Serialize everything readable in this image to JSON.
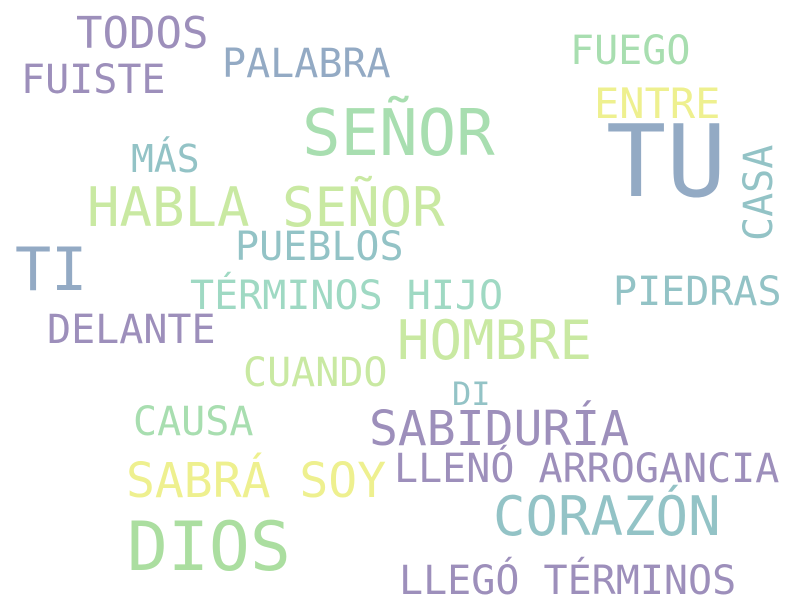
{
  "palette": {
    "purple": "#9d8fbb",
    "slate": "#93aac4",
    "mint": "#a8deb0",
    "yellow": "#eef08f",
    "teal": "#93c3c6",
    "lime": "#c9e9a2",
    "seafoam": "#9fd9c3",
    "green": "#abdea0"
  },
  "words": [
    {
      "text": "TODOS",
      "color": "purple"
    },
    {
      "text": "FUISTE",
      "color": "purple"
    },
    {
      "text": "PALABRA",
      "color": "slate"
    },
    {
      "text": "FUEGO",
      "color": "mint"
    },
    {
      "text": "ENTRE",
      "color": "yellow"
    },
    {
      "text": "SEÑOR",
      "color": "mint"
    },
    {
      "text": "TU",
      "color": "slate"
    },
    {
      "text": "MÁS",
      "color": "teal"
    },
    {
      "text": "CASA",
      "color": "teal"
    },
    {
      "text": "HABLA SEÑOR",
      "color": "lime"
    },
    {
      "text": "TI",
      "color": "slate"
    },
    {
      "text": "PUEBLOS",
      "color": "teal"
    },
    {
      "text": "TÉRMINOS HIJO",
      "color": "seafoam"
    },
    {
      "text": "PIEDRAS",
      "color": "teal"
    },
    {
      "text": "DELANTE",
      "color": "purple"
    },
    {
      "text": "HOMBRE",
      "color": "lime"
    },
    {
      "text": "CUANDO",
      "color": "lime"
    },
    {
      "text": "DI",
      "color": "teal"
    },
    {
      "text": "CAUSA",
      "color": "mint"
    },
    {
      "text": "SABIDURÍA",
      "color": "purple"
    },
    {
      "text": "SABRÁ SOY",
      "color": "yellow"
    },
    {
      "text": "LLENÓ ARROGANCIA",
      "color": "purple"
    },
    {
      "text": "CORAZÓN",
      "color": "teal"
    },
    {
      "text": "DIOS",
      "color": "green"
    },
    {
      "text": "LLEGÓ TÉRMINOS",
      "color": "purple"
    }
  ]
}
